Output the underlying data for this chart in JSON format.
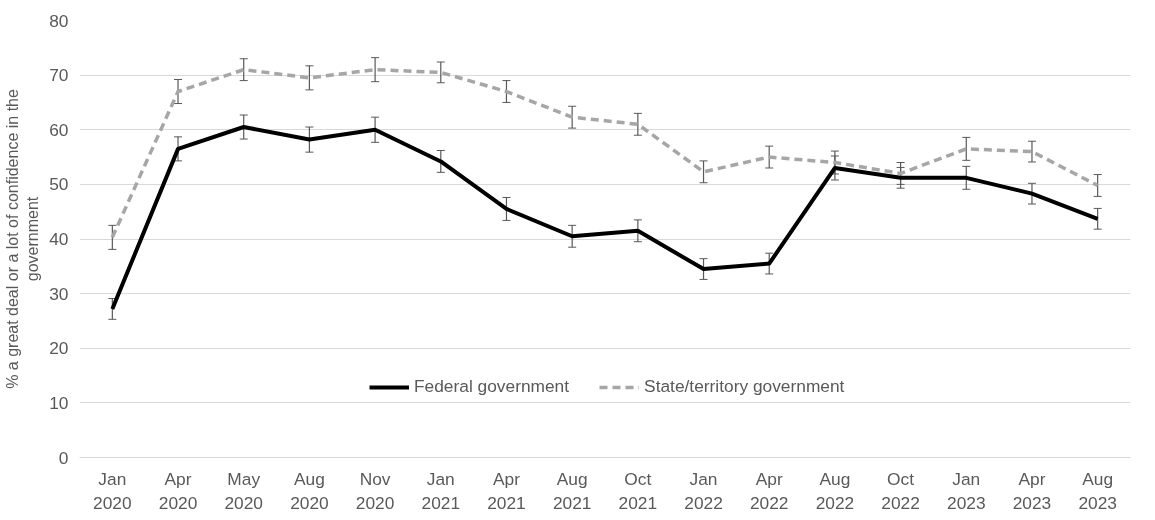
{
  "chart_data": {
    "type": "line",
    "ylabel": "% a great deal or a lot of confidence in the government",
    "categories": [
      "Jan 2020",
      "Apr 2020",
      "May 2020",
      "Aug 2020",
      "Nov 2020",
      "Jan 2021",
      "Apr 2021",
      "Aug 2021",
      "Oct 2021",
      "Jan 2022",
      "Apr 2022",
      "Aug 2022",
      "Oct 2022",
      "Jan 2023",
      "Apr 2023",
      "Aug 2023"
    ],
    "ylim": [
      0,
      80
    ],
    "yticks": [
      0,
      10,
      20,
      30,
      40,
      50,
      60,
      70,
      80
    ],
    "grid": "y",
    "legend": "bottom",
    "marker": "none",
    "series": [
      {
        "name": "Federal government",
        "color": "#000000",
        "line_style": "solid",
        "values": [
          27.2,
          56.5,
          60.5,
          58.2,
          60,
          54.2,
          45.5,
          40.5,
          41.5,
          34.5,
          35.5,
          53,
          51.2,
          51.2,
          48.3,
          43.7
        ],
        "errors": [
          1.9,
          2.2,
          2.2,
          2.3,
          2.3,
          2,
          2.1,
          2,
          2,
          1.9,
          1.9,
          2.2,
          1.9,
          2.1,
          1.9,
          1.9
        ]
      },
      {
        "name": "State/territory government",
        "color": "#a6a6a6",
        "line_style": "dashed",
        "values": [
          40.3,
          67,
          71,
          69.5,
          71,
          70.5,
          67,
          62.3,
          61,
          52.3,
          55,
          54,
          52,
          56.5,
          56,
          49.8
        ],
        "errors": [
          2.2,
          2.2,
          2,
          2.2,
          2.2,
          1.9,
          2,
          2,
          2,
          2,
          2,
          2.1,
          2,
          2.1,
          1.9,
          2
        ]
      }
    ]
  }
}
